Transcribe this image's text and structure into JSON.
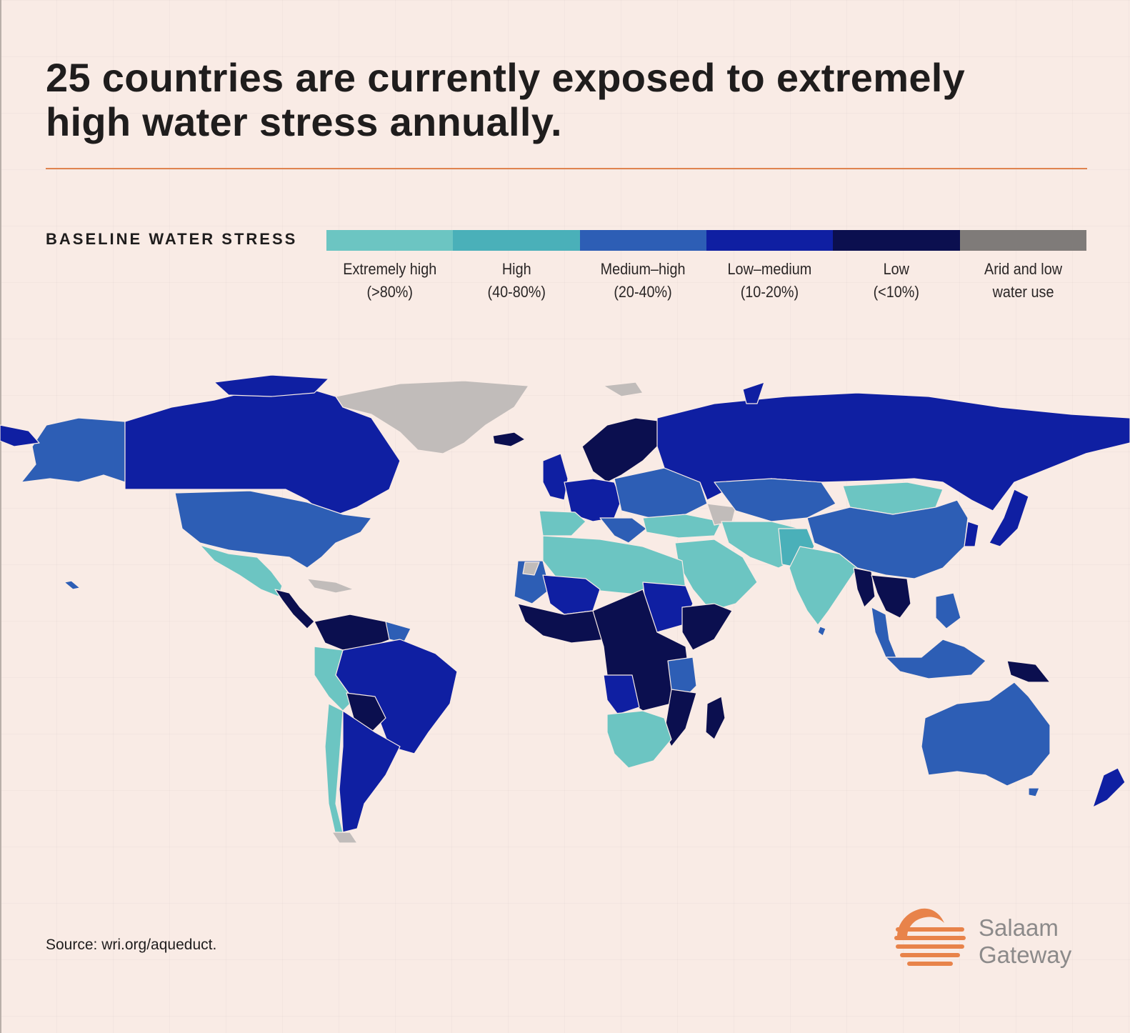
{
  "title": "25 countries are currently exposed to extremely high water stress annually.",
  "legend": {
    "title": "BASELINE WATER STRESS",
    "items": [
      {
        "line1": "Extremely high",
        "line2": "(>80%)",
        "color": "#6cc5c2"
      },
      {
        "line1": "High",
        "line2": "(40-80%)",
        "color": "#4ab0b9"
      },
      {
        "line1": "Medium–high",
        "line2": "(20-40%)",
        "color": "#2d5eb5"
      },
      {
        "line1": "Low–medium",
        "line2": "(10-20%)",
        "color": "#0f1fa2"
      },
      {
        "line1": "Low",
        "line2": "(<10%)",
        "color": "#0b0f4f"
      },
      {
        "line1": "Arid and low",
        "line2": "water use",
        "color": "#7f7b79"
      }
    ]
  },
  "colors": {
    "background": "#f9ebe5",
    "accent": "#e0844f",
    "no_data": "#c1bcba"
  },
  "source": "Source: wri.org/aqueduct.",
  "brand": {
    "line1": "Salaam",
    "line2": "Gateway"
  }
}
